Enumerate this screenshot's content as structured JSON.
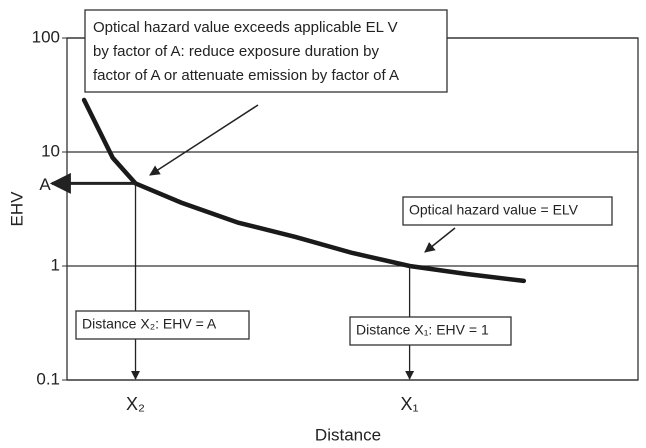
{
  "chart_data": {
    "type": "line",
    "y_label": "EHV",
    "x_label": "Distance",
    "ylog": true,
    "ylim": [
      0.1,
      100
    ],
    "yticks": [
      100,
      10,
      {
        "value": 5.3,
        "label": "A"
      },
      1,
      0.1
    ],
    "xlim": [
      0,
      100
    ],
    "xticks": [
      {
        "value": 12,
        "label": "X₂"
      },
      {
        "value": 60,
        "label": "X₁"
      }
    ],
    "grid": true,
    "x": [
      3,
      8,
      12,
      20,
      30,
      40,
      50,
      60,
      70,
      80
    ],
    "values": [
      28.6,
      8.9,
      5.3,
      3.6,
      2.4,
      1.8,
      1.3,
      1,
      0.85,
      0.74
    ],
    "color": "#1a1a1a",
    "annotations": [
      {
        "lines": [
          "Optical hazard value exceeds applicable EL V",
          "by factor of A: reduce exposure duration by",
          "factor of A or attenuate emission by factor of A"
        ]
      },
      {
        "text": "Optical hazard value = ELV"
      },
      {
        "text": "Distance X₂: EHV = A"
      },
      {
        "text": "Distance X₁: EHV = 1"
      }
    ]
  }
}
